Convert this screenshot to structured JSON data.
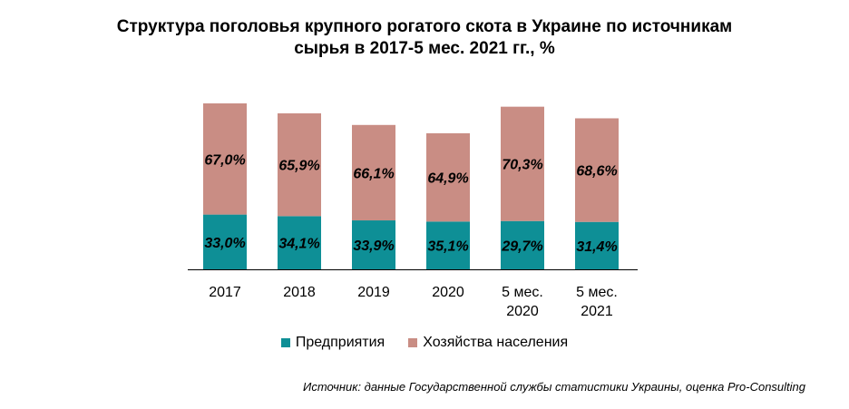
{
  "chart_data": {
    "type": "bar",
    "stacked": true,
    "title_lines": [
      "Структура поголовья крупного рогатого скота в Украине по источникам",
      "сырья в 2017-5 мес. 2021 гг., %"
    ],
    "categories": [
      [
        "2017"
      ],
      [
        "2018"
      ],
      [
        "2019"
      ],
      [
        "2020"
      ],
      [
        "5 мес.",
        "2020"
      ],
      [
        "5 мес.",
        "2021"
      ]
    ],
    "series": [
      {
        "name": "Предприятия",
        "color": "#0e8f96",
        "values": [
          33.0,
          34.1,
          33.9,
          35.1,
          29.7,
          31.4
        ],
        "labels": [
          "33,0%",
          "34,1%",
          "33,9%",
          "35,1%",
          "29,7%",
          "31,4%"
        ]
      },
      {
        "name": "Хозяйства населения",
        "color": "#c98d84",
        "values": [
          67.0,
          65.9,
          66.1,
          64.9,
          70.3,
          68.6
        ],
        "labels": [
          "67,0%",
          "65,9%",
          "66,1%",
          "64,9%",
          "70,3%",
          "68,6%"
        ]
      }
    ],
    "bar_totals_relative": [
      1.0,
      0.94,
      0.87,
      0.82,
      0.98,
      0.91
    ],
    "legend_position": "bottom",
    "grid": false,
    "source": "Источник: данные Государственной службы статистики Украины, оценка Pro-Consulting"
  }
}
